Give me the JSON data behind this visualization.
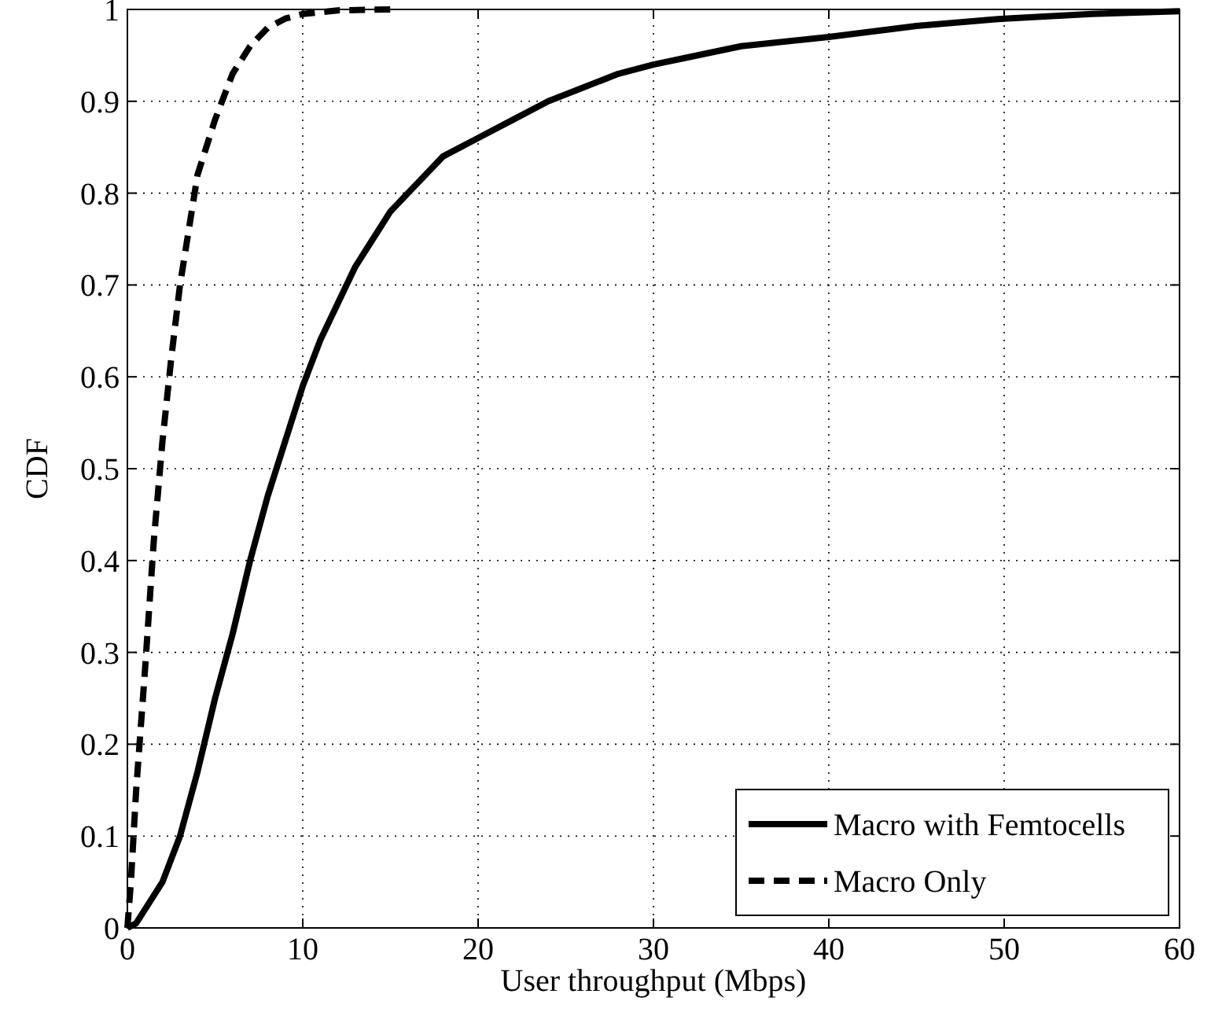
{
  "chart_data": {
    "type": "line",
    "xlabel": "User throughput (Mbps)",
    "ylabel": "CDF",
    "xlim": [
      0,
      60
    ],
    "ylim": [
      0,
      1
    ],
    "xticks": [
      0,
      10,
      20,
      30,
      40,
      50,
      60
    ],
    "yticks": [
      0,
      0.1,
      0.2,
      0.3,
      0.4,
      0.5,
      0.6,
      0.7,
      0.8,
      0.9,
      1
    ],
    "grid": true,
    "legend": "bottom right",
    "series": [
      {
        "name": "Macro with Femtocells",
        "color": "#000000",
        "line_style": "solid",
        "x": [
          0,
          0.5,
          1,
          2,
          3,
          4,
          5,
          6,
          7,
          8,
          9,
          10,
          11,
          12,
          13,
          14,
          15,
          16,
          17,
          18,
          20,
          22,
          24,
          26,
          28,
          30,
          32,
          35,
          40,
          45,
          50,
          55,
          60
        ],
        "values": [
          0,
          0.005,
          0.02,
          0.05,
          0.1,
          0.17,
          0.25,
          0.32,
          0.4,
          0.47,
          0.53,
          0.59,
          0.64,
          0.68,
          0.72,
          0.75,
          0.78,
          0.8,
          0.82,
          0.84,
          0.86,
          0.88,
          0.9,
          0.915,
          0.93,
          0.94,
          0.948,
          0.96,
          0.97,
          0.982,
          0.99,
          0.995,
          0.998
        ]
      },
      {
        "name": "Macro Only",
        "color": "#000000",
        "line_style": "dashed",
        "x": [
          0,
          0.2,
          0.5,
          1,
          1.5,
          2,
          2.5,
          3,
          3.5,
          4,
          5,
          6,
          7,
          8,
          9,
          10,
          12,
          15
        ],
        "values": [
          0,
          0.05,
          0.15,
          0.28,
          0.42,
          0.53,
          0.62,
          0.7,
          0.76,
          0.82,
          0.88,
          0.93,
          0.96,
          0.98,
          0.99,
          0.995,
          0.999,
          1
        ]
      }
    ]
  }
}
